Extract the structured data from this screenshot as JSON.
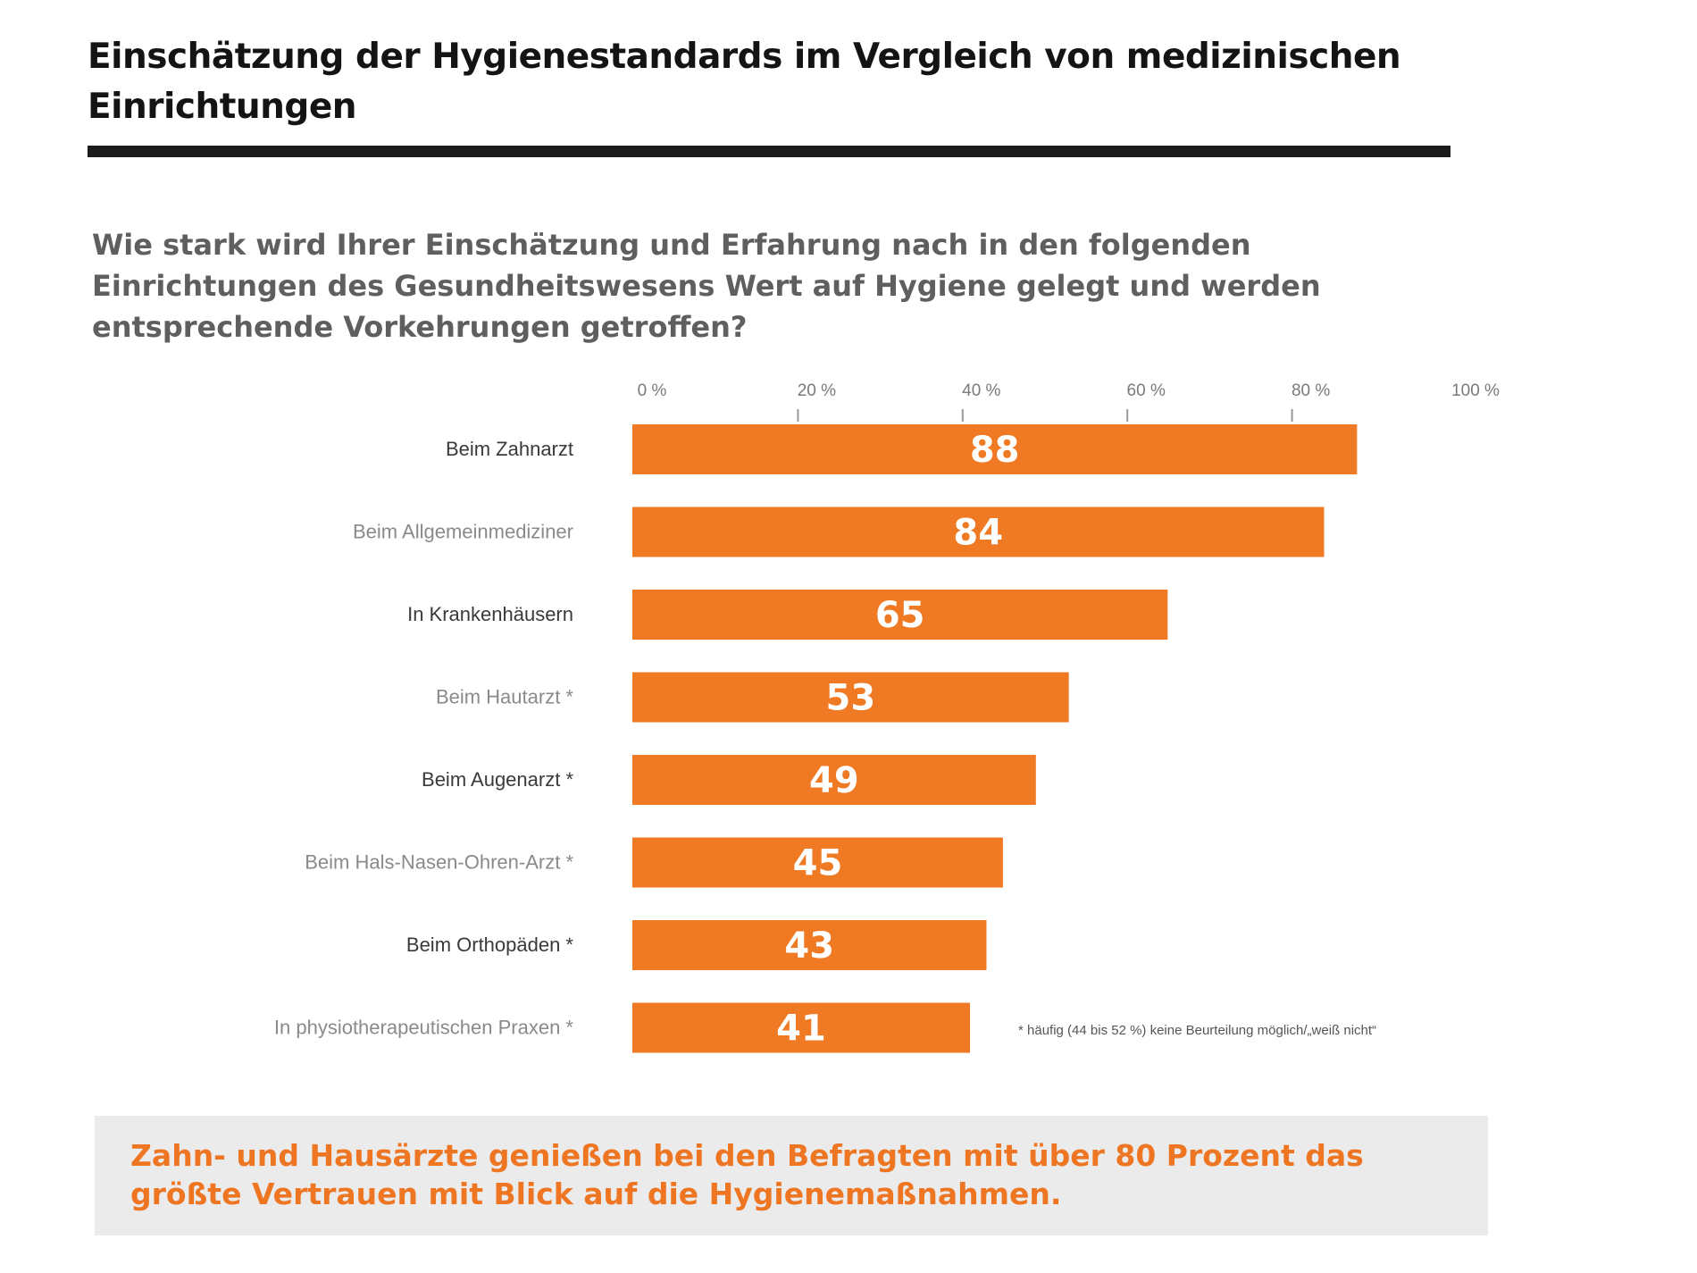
{
  "title": "Einschätzung der Hygienestandards im Vergleich von medizinischen Einrichtungen",
  "question": "Wie stark wird Ihrer Einschätzung und Erfahrung nach in den folgenden Einrichtungen des Gesundheitswesens Wert auf Hygiene gelegt und werden entsprechende Vorkehrungen getroffen?",
  "footnote": "* häufig (44 bis 52 %) keine Beurteilung möglich/„weiß nicht“",
  "conclusion": "Zahn- und Hausärzte genießen bei den Befragten mit über 80 Prozent das größte Vertrauen mit Blick auf die Hygienemaßnahmen.",
  "colors": {
    "bar": "#ef7a23",
    "bar_label": "#ffffff",
    "title": "#141414",
    "question": "#5f5f62",
    "conclusion": "#ee7623",
    "conclusion_bg": "#ebebeb"
  },
  "chart_data": {
    "type": "bar",
    "orientation": "horizontal",
    "categories": [
      "Beim Zahnarzt",
      "Beim Allgemeinmediziner",
      "In Krankenhäusern",
      "Beim Hautarzt *",
      "Beim Augenarzt *",
      "Beim Hals-Nasen-Ohren-Arzt *",
      "Beim Orthopäden *",
      "In physiotherapeutischen Praxen *"
    ],
    "values": [
      88,
      84,
      65,
      53,
      49,
      45,
      43,
      41
    ],
    "category_label_colors": [
      "#3a3a3a",
      "#8a8a8a",
      "#3a3a3a",
      "#8a8a8a",
      "#3a3a3a",
      "#8a8a8a",
      "#3a3a3a",
      "#8a8a8a"
    ],
    "x_ticks": [
      0,
      20,
      40,
      60,
      80,
      100
    ],
    "x_tick_labels": [
      "0 %",
      "20 %",
      "40 %",
      "60 %",
      "80 %",
      "100 %"
    ],
    "xlim": [
      0,
      100
    ],
    "axis_position": "top",
    "grid": false,
    "data_labels": true
  }
}
